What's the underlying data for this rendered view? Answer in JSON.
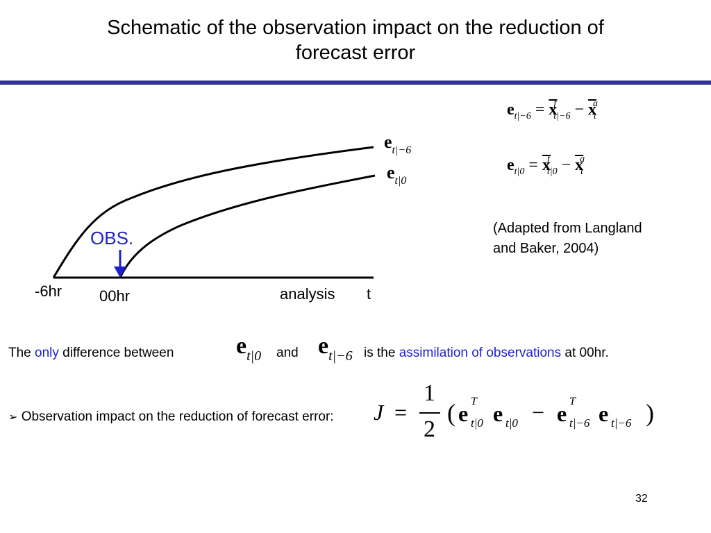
{
  "slide": {
    "title_line1": "Schematic of the observation impact on the reduction of",
    "title_line2": "forecast error",
    "page_number": "32",
    "rule_color": "#2e3192"
  },
  "diagram": {
    "obs_label": "OBS.",
    "label_minus6": "-6hr",
    "label_00": "00hr",
    "label_analysis": "analysis",
    "label_t": "t",
    "curve_upper": {
      "symbol": "e",
      "subscript": "t|−6"
    },
    "curve_lower": {
      "symbol": "e",
      "subscript": "t|0"
    },
    "obs_color": "#1f1fcc"
  },
  "equations": {
    "eq1": {
      "lhs": "e",
      "lhs_sub": "t|−6",
      "eq": "=",
      "x1": "x",
      "x1_sup": "f",
      "x1_sub": "t|−6",
      "minus": "−",
      "x2": "x",
      "x2_sup": "a",
      "x2_sub": "t"
    },
    "eq2": {
      "lhs": "e",
      "lhs_sub": "t|0",
      "eq": "=",
      "x1": "x",
      "x1_sup": "f",
      "x1_sub": "t|0",
      "minus": "−",
      "x2": "x",
      "x2_sup": "a",
      "x2_sub": "t"
    }
  },
  "citation": {
    "line1": "(Adapted from Langland",
    "line2": "and Baker, 2004)"
  },
  "statement": {
    "p1": "The ",
    "p2": "only",
    "p3": " difference between",
    "e1": "e",
    "e1_sub": "t|0",
    "p4": "and",
    "e2": "e",
    "e2_sub": "t|−6",
    "p5": "is the ",
    "p6": "assimilation of observations",
    "p7": " at 00hr."
  },
  "bullet": {
    "marker": "➢",
    "text": "Observation impact on the reduction of forecast error:",
    "J": "J",
    "eq": "=",
    "num": "1",
    "den": "2",
    "open": "(",
    "e": "e",
    "T": "T",
    "sub0": "t|0",
    "subm6": "t|−6",
    "minus": "−",
    "close": ")"
  }
}
